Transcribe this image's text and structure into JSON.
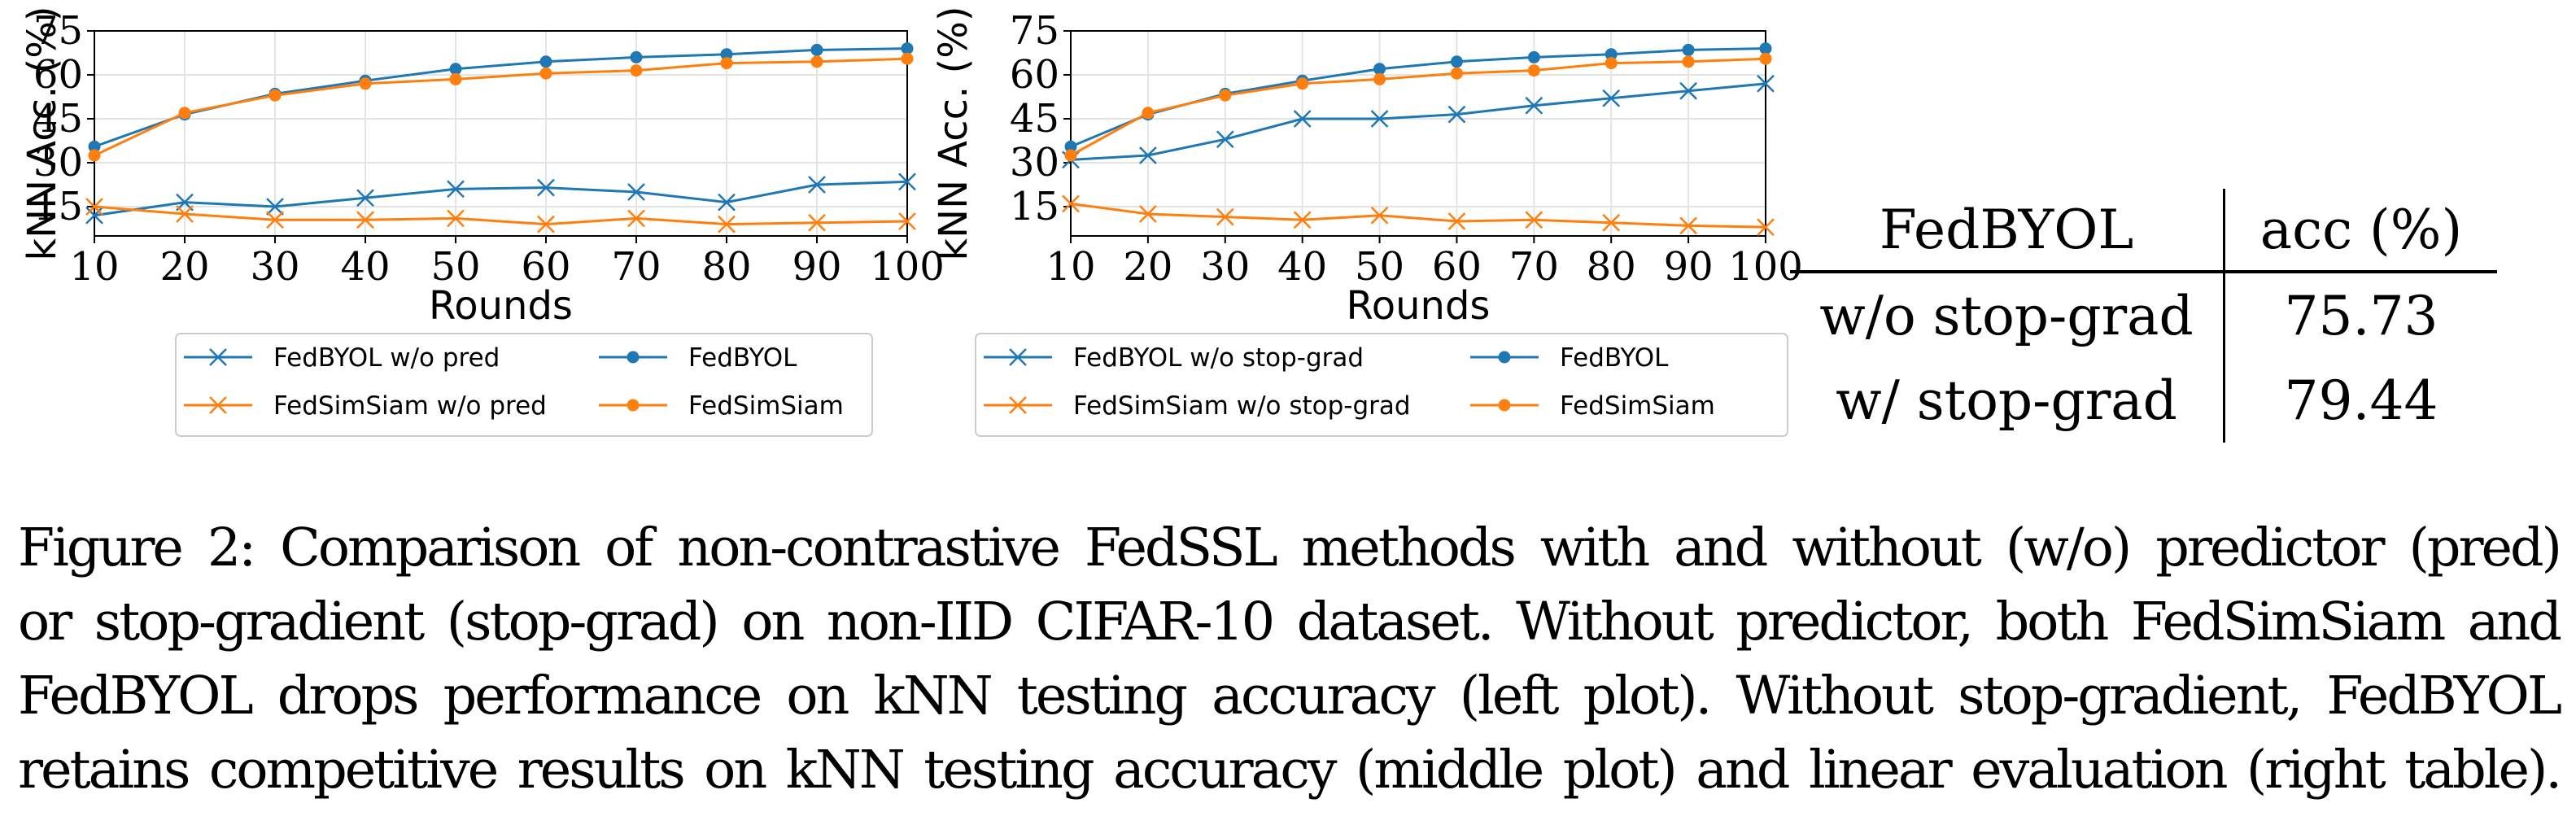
{
  "chart_data": [
    {
      "type": "line",
      "title": "",
      "xlabel": "Rounds",
      "ylabel": "kNN Acc. (%)",
      "x": [
        10,
        20,
        30,
        40,
        50,
        60,
        70,
        80,
        90,
        100
      ],
      "xlim": [
        10,
        100
      ],
      "ylim": [
        5,
        75
      ],
      "yticks": [
        15,
        30,
        45,
        60,
        75
      ],
      "grid": true,
      "legend_position": "bottom",
      "series": [
        {
          "name": "FedBYOL w/o pred",
          "marker": "x",
          "color": "#1f77b4",
          "values": [
            12,
            16.5,
            15,
            18,
            21,
            21.5,
            20,
            16.5,
            22.5,
            23.5
          ]
        },
        {
          "name": "FedSimSiam w/o pred",
          "marker": "x",
          "color": "#ff7f0e",
          "values": [
            15,
            12.5,
            10.5,
            10.5,
            11,
            9,
            11,
            9,
            9.5,
            10
          ]
        },
        {
          "name": "FedBYOL",
          "marker": "dot",
          "color": "#1f77b4",
          "values": [
            35.5,
            46.5,
            53.5,
            58,
            62,
            64.5,
            66,
            67,
            68.5,
            69
          ]
        },
        {
          "name": "FedSimSiam",
          "marker": "dot",
          "color": "#ff7f0e",
          "values": [
            32.5,
            47,
            53,
            57,
            58.5,
            60.5,
            61.5,
            64,
            64.5,
            65.5
          ]
        }
      ]
    },
    {
      "type": "line",
      "title": "",
      "xlabel": "Rounds",
      "ylabel": "kNN Acc. (%)",
      "x": [
        10,
        20,
        30,
        40,
        50,
        60,
        70,
        80,
        90,
        100
      ],
      "xlim": [
        10,
        100
      ],
      "ylim": [
        5,
        75
      ],
      "yticks": [
        15,
        30,
        45,
        60,
        75
      ],
      "grid": true,
      "legend_position": "bottom",
      "series": [
        {
          "name": "FedBYOL w/o stop-grad",
          "marker": "x",
          "color": "#1f77b4",
          "values": [
            31,
            32.5,
            38,
            45,
            45,
            46.5,
            49.5,
            52,
            54.5,
            57
          ]
        },
        {
          "name": "FedSimSiam w/o stop-grad",
          "marker": "x",
          "color": "#ff7f0e",
          "values": [
            16,
            12.5,
            11.5,
            10.5,
            12,
            10,
            10.5,
            9.5,
            8.5,
            8
          ]
        },
        {
          "name": "FedBYOL",
          "marker": "dot",
          "color": "#1f77b4",
          "values": [
            35.5,
            46.5,
            53.5,
            58,
            62,
            64.5,
            66,
            67,
            68.5,
            69
          ]
        },
        {
          "name": "FedSimSiam",
          "marker": "dot",
          "color": "#ff7f0e",
          "values": [
            32.5,
            47,
            53,
            57,
            58.5,
            60.5,
            61.5,
            64,
            64.5,
            65.5
          ]
        }
      ]
    }
  ],
  "table": {
    "header": [
      "FedBYOL",
      "acc (%)"
    ],
    "rows": [
      [
        "w/o stop-grad",
        "75.73"
      ],
      [
        "w/ stop-grad",
        "79.44"
      ]
    ]
  },
  "caption_lines": [
    "Figure 2: Comparison of non-contrastive FedSSL methods with and without (w/o) predictor (pred)",
    "or stop-gradient (stop-grad) on non-IID CIFAR-10 dataset. Without predictor, both FedSimSiam and",
    "FedBYOL drops performance on kNN testing accuracy (left plot). Without stop-gradient, FedBYOL",
    "retains competitive results on kNN testing accuracy (middle plot) and linear evaluation (right table)."
  ]
}
